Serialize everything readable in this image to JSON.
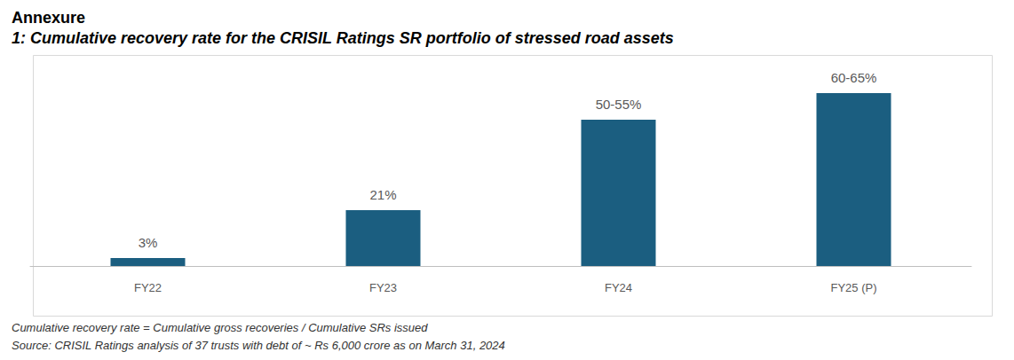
{
  "chart_data": {
    "type": "bar",
    "title": "Annexure",
    "subtitle": "1: Cumulative recovery rate for the CRISIL Ratings SR portfolio of stressed road assets",
    "categories": [
      "FY22",
      "FY23",
      "FY24",
      "FY25 (P)"
    ],
    "values": [
      3,
      21,
      55,
      65
    ],
    "value_labels": [
      "3%",
      "21%",
      "50-55%",
      "60-65%"
    ],
    "color": "#1b5e80",
    "ylim": [
      0,
      80
    ],
    "grid": false,
    "data_labels": true,
    "tick_labels": "x",
    "notes": [
      "Cumulative recovery rate = Cumulative gross recoveries / Cumulative SRs issued",
      "Source: CRISIL Ratings analysis of 37 trusts with debt of ~ Rs 6,000 crore as on March 31, 2024"
    ]
  }
}
